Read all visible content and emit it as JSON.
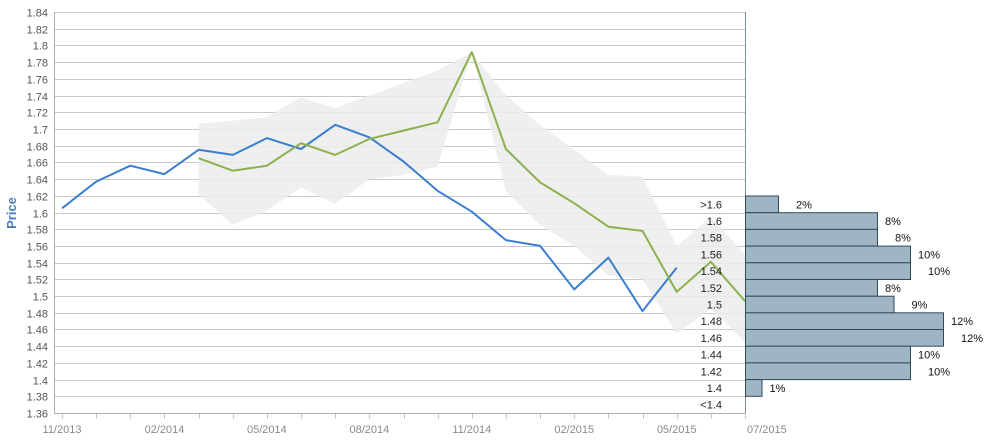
{
  "chart_data": {
    "type": "line",
    "title": "",
    "xlabel": "",
    "ylabel": "Price",
    "ylim": [
      1.36,
      1.84
    ],
    "y_ticks": [
      1.36,
      1.38,
      1.4,
      1.42,
      1.44,
      1.46,
      1.48,
      1.5,
      1.52,
      1.54,
      1.56,
      1.58,
      1.6,
      1.62,
      1.64,
      1.66,
      1.68,
      1.7,
      1.72,
      1.74,
      1.76,
      1.78,
      1.8,
      1.82,
      1.84
    ],
    "y_tick_labels": [
      "1.36",
      "1.38",
      "1.4",
      "1.42",
      "1.44",
      "1.46",
      "1.48",
      "1.5",
      "1.52",
      "1.54",
      "1.56",
      "1.58",
      "1.6",
      "1.62",
      "1.64",
      "1.66",
      "1.68",
      "1.7",
      "1.72",
      "1.74",
      "1.76",
      "1.78",
      "1.8",
      "1.82",
      "1.84"
    ],
    "x_ticks": [
      "11/2013",
      "02/2014",
      "05/2014",
      "08/2014",
      "11/2014",
      "02/2015",
      "05/2015",
      "07/2015"
    ],
    "x_months": [
      "2013-11",
      "2013-12",
      "2014-01",
      "2014-02",
      "2014-03",
      "2014-04",
      "2014-05",
      "2014-06",
      "2014-07",
      "2014-08",
      "2014-09",
      "2014-10",
      "2014-11",
      "2014-12",
      "2015-01",
      "2015-02",
      "2015-03",
      "2015-04",
      "2015-05",
      "2015-06",
      "2015-07"
    ],
    "grid": true,
    "series": [
      {
        "color": "#3a7fcf",
        "x": [
          "2013-11",
          "2013-12",
          "2014-01",
          "2014-02",
          "2014-03",
          "2014-04",
          "2014-05",
          "2014-06",
          "2014-07",
          "2014-08",
          "2014-09",
          "2014-10",
          "2014-11",
          "2014-12",
          "2015-01",
          "2015-02",
          "2015-03",
          "2015-04",
          "2015-05"
        ],
        "values": [
          1.605,
          1.637,
          1.656,
          1.646,
          1.675,
          1.669,
          1.689,
          1.676,
          1.705,
          1.69,
          1.661,
          1.626,
          1.601,
          1.567,
          1.56,
          1.508,
          1.546,
          1.482,
          1.534
        ]
      },
      {
        "color": "#8db04f",
        "x": [
          "2014-03",
          "2014-04",
          "2014-05",
          "2014-06",
          "2014-07",
          "2014-08",
          "2014-09",
          "2014-10",
          "2014-11",
          "2014-12",
          "2015-01",
          "2015-02",
          "2015-03",
          "2015-04",
          "2015-05",
          "2015-06",
          "2015-07"
        ],
        "values": [
          1.665,
          1.65,
          1.656,
          1.683,
          1.669,
          1.688,
          1.698,
          1.708,
          1.792,
          1.676,
          1.636,
          1.611,
          1.583,
          1.578,
          1.505,
          1.541,
          1.494
        ]
      }
    ],
    "band": {
      "color": "#ececec",
      "x": [
        "2014-03",
        "2014-04",
        "2014-05",
        "2014-06",
        "2014-07",
        "2014-08",
        "2014-09",
        "2014-10",
        "2014-11",
        "2014-12",
        "2015-01",
        "2015-02",
        "2015-03",
        "2015-04",
        "2015-05",
        "2015-06",
        "2015-07"
      ],
      "upper": [
        1.706,
        1.71,
        1.714,
        1.738,
        1.725,
        1.74,
        1.755,
        1.77,
        1.792,
        1.74,
        1.705,
        1.675,
        1.645,
        1.643,
        1.56,
        1.595,
        1.55
      ],
      "lower": [
        1.622,
        1.585,
        1.602,
        1.63,
        1.61,
        1.64,
        1.645,
        1.655,
        1.792,
        1.625,
        1.585,
        1.56,
        1.525,
        1.52,
        1.455,
        1.485,
        1.445
      ]
    },
    "distribution": {
      "color": "#9fb5c4",
      "bins": [
        {
          "label": ">1.6",
          "pct_value": 2,
          "pct_label": "2%"
        },
        {
          "label": "1.6",
          "pct_value": 8,
          "pct_label": "8%"
        },
        {
          "label": "1.58",
          "pct_value": 8,
          "pct_label": "8%"
        },
        {
          "label": "1.56",
          "pct_value": 10,
          "pct_label": "10%"
        },
        {
          "label": "1.54",
          "pct_value": 10,
          "pct_label": "10%"
        },
        {
          "label": "1.52",
          "pct_value": 8,
          "pct_label": "8%"
        },
        {
          "label": "1.5",
          "pct_value": 9,
          "pct_label": "9%"
        },
        {
          "label": "1.48",
          "pct_value": 12,
          "pct_label": "12%"
        },
        {
          "label": "1.46",
          "pct_value": 12,
          "pct_label": "12%"
        },
        {
          "label": "1.44",
          "pct_value": 10,
          "pct_label": "10%"
        },
        {
          "label": "1.42",
          "pct_value": 10,
          "pct_label": "10%"
        },
        {
          "label": "1.4",
          "pct_value": 1,
          "pct_label": "1%"
        },
        {
          "label": "<1.4",
          "pct_value": 0,
          "pct_label": ""
        }
      ]
    }
  }
}
